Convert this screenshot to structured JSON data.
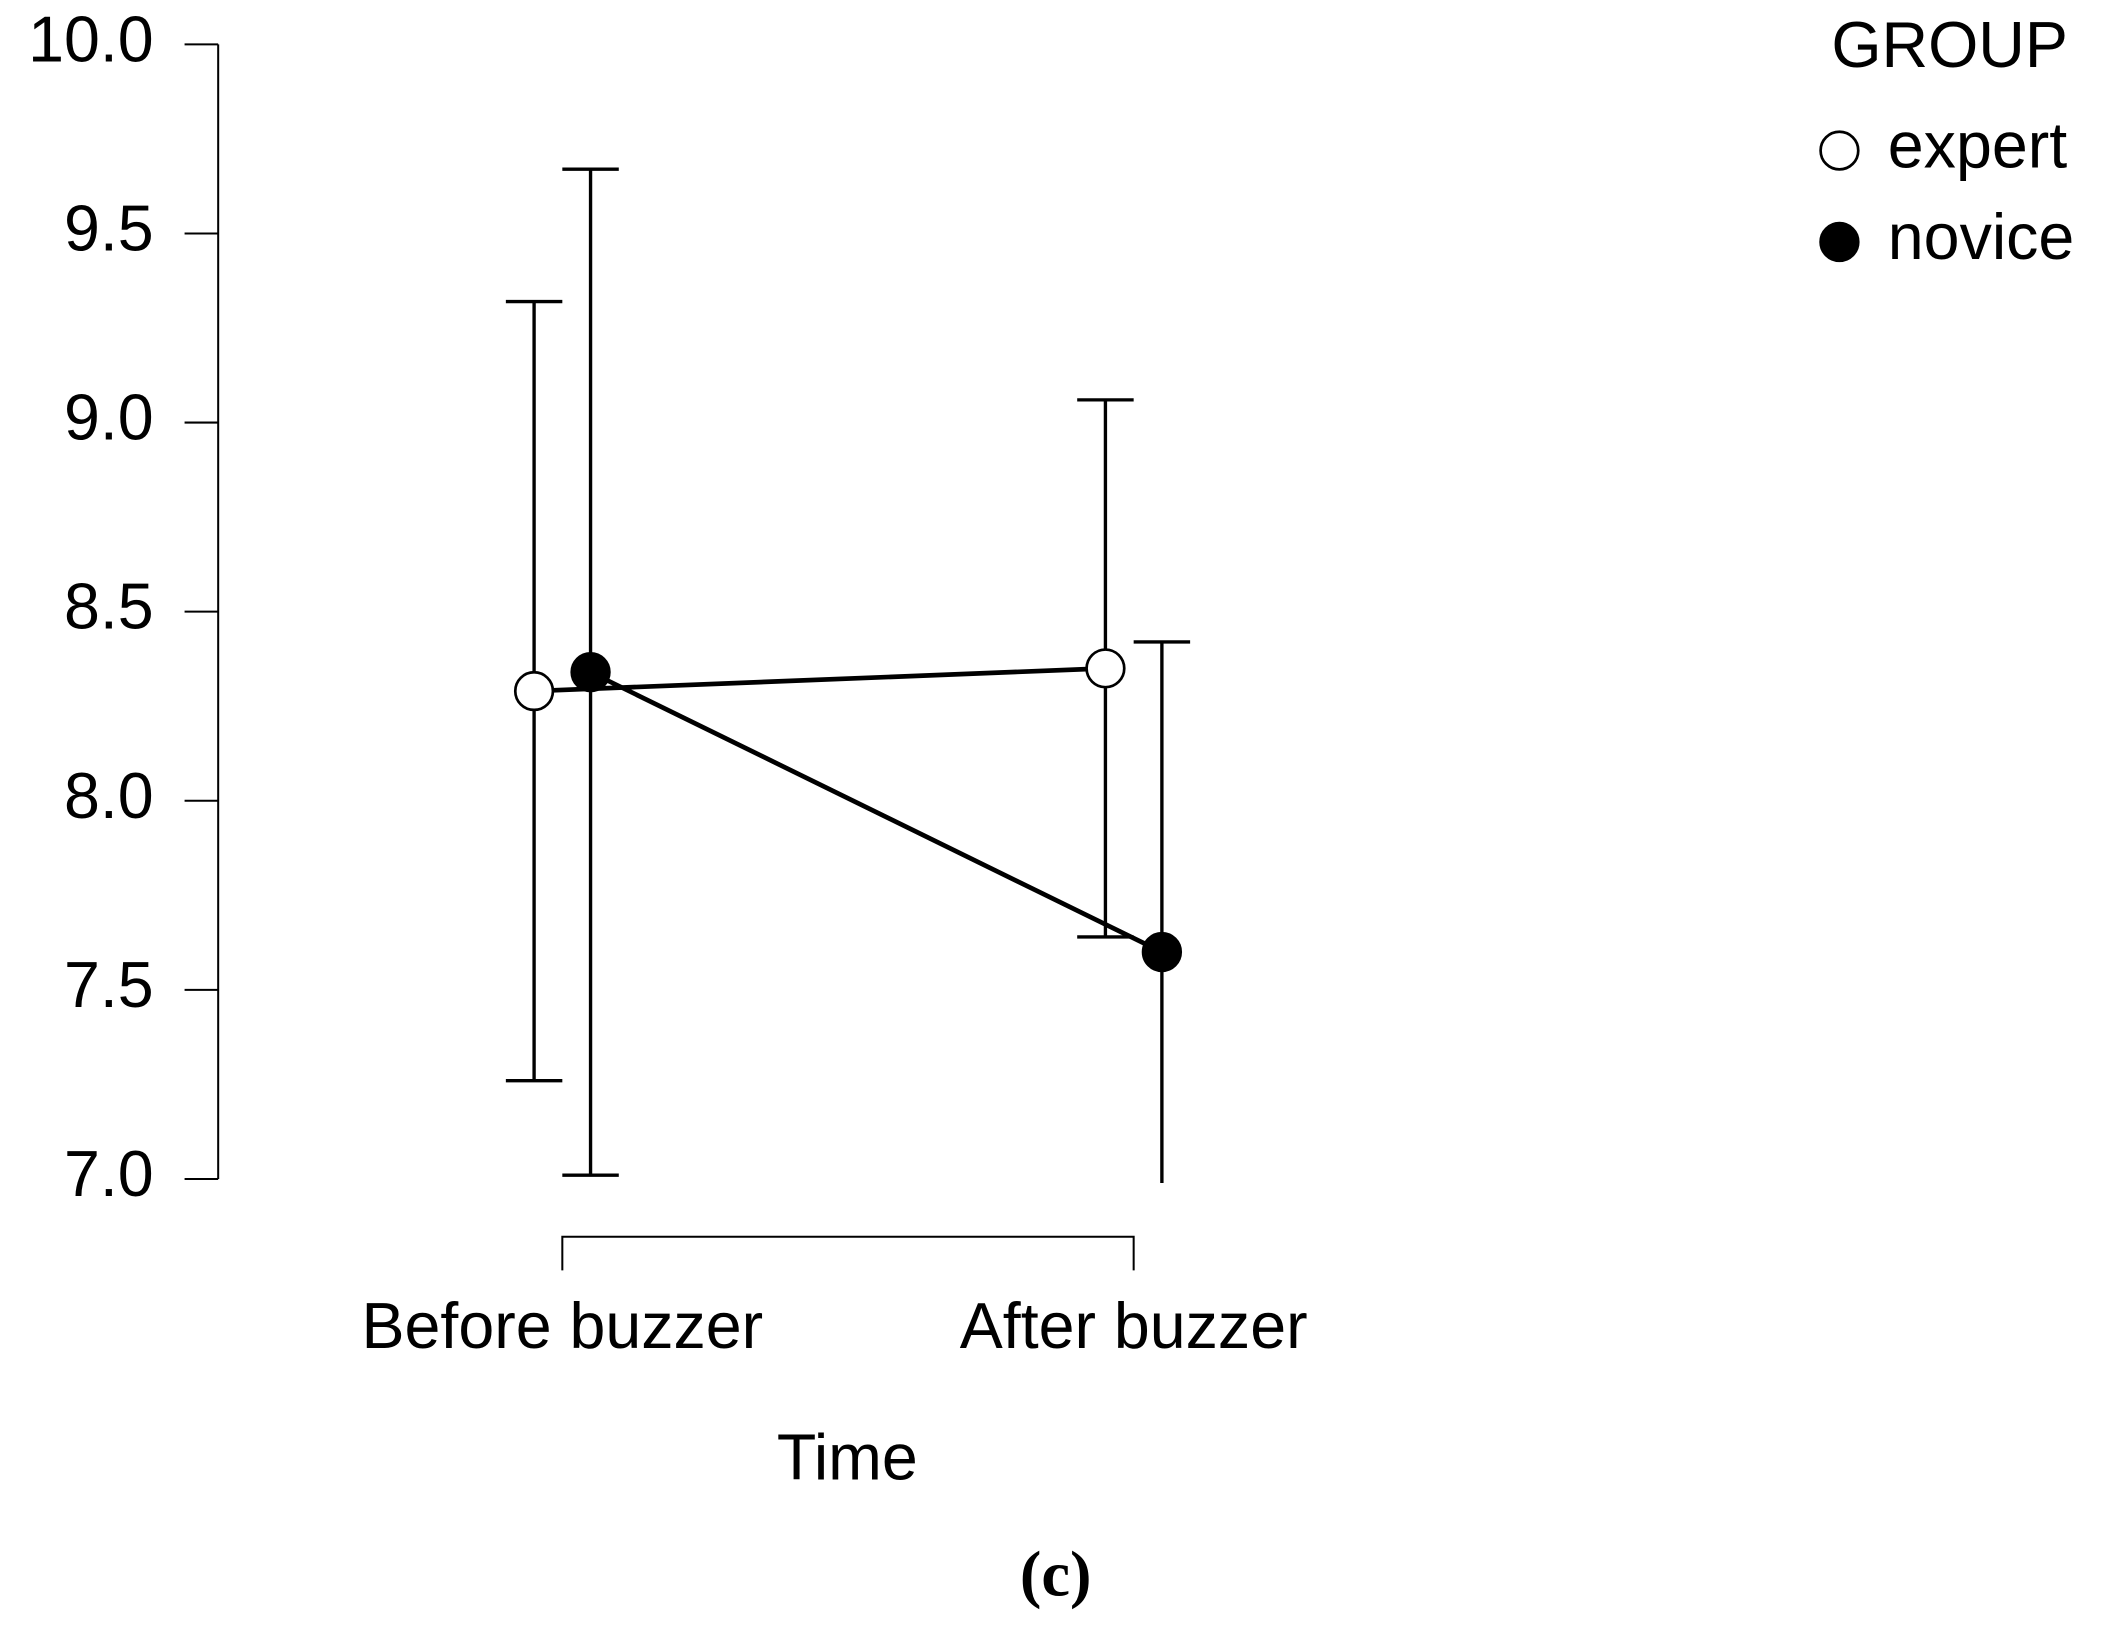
{
  "chart_data": {
    "type": "line",
    "x_label": "Time",
    "caption": "(c)",
    "categories": [
      "Before buzzer",
      "After buzzer"
    ],
    "legend_title": "GROUP",
    "legend_position": "upper right",
    "series": [
      {
        "name": "expert",
        "color": "#ffffff",
        "values": [
          8.29,
          8.35
        ],
        "errors": [
          1.03,
          0.71
        ]
      },
      {
        "name": "novice",
        "color": "#000000",
        "values": [
          8.34,
          7.6
        ],
        "errors": [
          1.33,
          0.82
        ]
      }
    ],
    "ylim": [
      7,
      10
    ],
    "yticks": [
      {
        "value": 7,
        "label": "7.0"
      },
      {
        "value": 7.5,
        "label": "7.5"
      },
      {
        "value": 8,
        "label": "8.0"
      },
      {
        "value": 8.5,
        "label": "8.5"
      },
      {
        "value": 9,
        "label": "9.0"
      },
      {
        "value": 9.5,
        "label": "9.5"
      },
      {
        "value": 10,
        "label": "10.0"
      }
    ]
  }
}
